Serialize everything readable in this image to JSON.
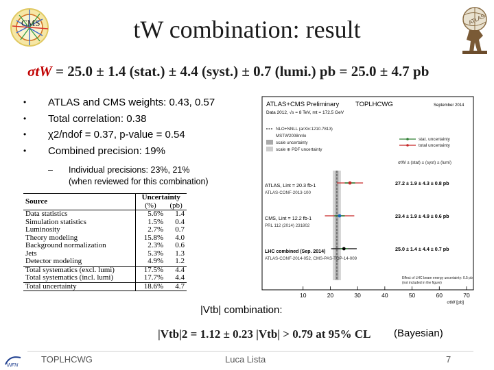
{
  "slide": {
    "title": "tW combination: result",
    "formula": {
      "sigma": "σtW",
      "rest": " = 25.0 ± 1.4 (stat.) ± 4.4 (syst.) ± 0.7 (lumi.) pb = 25.0 ± 4.7 pb"
    },
    "bullets": [
      "ATLAS and CMS weights: 0.43, 0.57",
      "Total correlation: 0.38",
      "χ2/ndof = 0.37, p-value = 0.54",
      "Combined precision: 19%"
    ],
    "sub_bullet": {
      "dash": "–",
      "line1": "Individual precisions: 23%, 21%",
      "line2": "(when reviewed for this combination)"
    },
    "table": {
      "header": {
        "source": "Source",
        "uncertainty": "Uncertainty",
        "pct": "(%)",
        "pb": "(pb)"
      },
      "rows": [
        {
          "source": "Data statistics",
          "pct": "5.6%",
          "pb": "1.4"
        },
        {
          "source": "Simulation statistics",
          "pct": "1.5%",
          "pb": "0.4"
        },
        {
          "source": "Luminosity",
          "pct": "2.7%",
          "pb": "0.7"
        },
        {
          "source": "Theory modeling",
          "pct": "15.8%",
          "pb": "4.0"
        },
        {
          "source": "Background normalization",
          "pct": "2.3%",
          "pb": "0.6"
        },
        {
          "source": "Jets",
          "pct": "5.3%",
          "pb": "1.3"
        },
        {
          "source": "Detector modeling",
          "pct": "4.9%",
          "pb": "1.2"
        },
        {
          "source": "Total systematics (excl. lumi)",
          "pct": "17.5%",
          "pb": "4.4"
        },
        {
          "source": "Total systematics (incl. lumi)",
          "pct": "17.7%",
          "pb": "4.4"
        },
        {
          "source": "Total uncertainty",
          "pct": "18.6%",
          "pb": "4.7"
        }
      ]
    },
    "plot": {
      "header_left": "ATLAS+CMS Preliminary",
      "header_mid": "TOPLHCWG",
      "header_right": "September 2014",
      "subheader": "Data 2012, √s = 8 TeV, mt = 172.5 GeV",
      "legend": [
        {
          "label": "NLO+NNLL (arXiv:1210.7813)",
          "style": "dashed",
          "color": "#555555"
        },
        {
          "label": "MSTW2008nnlo",
          "style": "none",
          "color": "#555555"
        },
        {
          "label": "scale uncertainty",
          "style": "box",
          "color": "#aaaaaa"
        },
        {
          "label": "scale ⊕ PDF uncertainty",
          "style": "box",
          "color": "#cccccc"
        }
      ],
      "legend_right": [
        {
          "label": "stat. uncertainty",
          "color": "#2e7d32"
        },
        {
          "label": "total uncertainty",
          "color": "#c62828"
        }
      ],
      "col_header": "σtW ± (stat) ± (syst) ± (lumi)",
      "theory_value": 22.4,
      "theory_scale_band": [
        21.8,
        23.0
      ],
      "theory_total_band": [
        20.9,
        23.9
      ],
      "x_axis": {
        "label": "σtW [pb]",
        "min": 0,
        "max": 70,
        "ticks": [
          10,
          20,
          30,
          40,
          50,
          60,
          70
        ]
      },
      "measurements": [
        {
          "name": "ATLAS, Lint = 20.3 fb-1",
          "ref": "ATLAS-CONF-2013-100",
          "value": 27.2,
          "stat": 1.9,
          "total": 4.8,
          "result": "27.2 ± 1.9 ± 4.3 ± 0.8 pb",
          "color": "#c62828",
          "bold": false
        },
        {
          "name": "CMS, Lint = 12.2 fb-1",
          "ref": "PRL 112 (2014) 231802",
          "value": 23.4,
          "stat": 1.9,
          "total": 5.4,
          "result": "23.4 ± 1.9 ± 4.9 ± 0.6 pb",
          "color": "#1565c0",
          "bold": false
        },
        {
          "name": "LHC combined (Sep. 2014)",
          "ref": "ATLAS-CONF-2014-052, CMS-PAS-TOP-14-009",
          "value": 25.0,
          "stat": 1.4,
          "total": 4.7,
          "result": "25.0 ± 1.4 ± 4.4 ± 0.7 pb",
          "color": "#000000",
          "bold": true
        }
      ],
      "note_line1": "Effect of LHC beam energy uncertainty: 0.5 pb",
      "note_line2": "(not included in the figure)"
    },
    "vtb": {
      "heading": "|Vtb| combination:",
      "formula": "|Vtb|2 = 1.12 ± 0.23    |Vtb| > 0.79 at 95% CL",
      "bayes": "(Bayesian)"
    },
    "footer": {
      "left": "TOPLHCWG",
      "center": "Luca Lista",
      "page": "7"
    }
  }
}
